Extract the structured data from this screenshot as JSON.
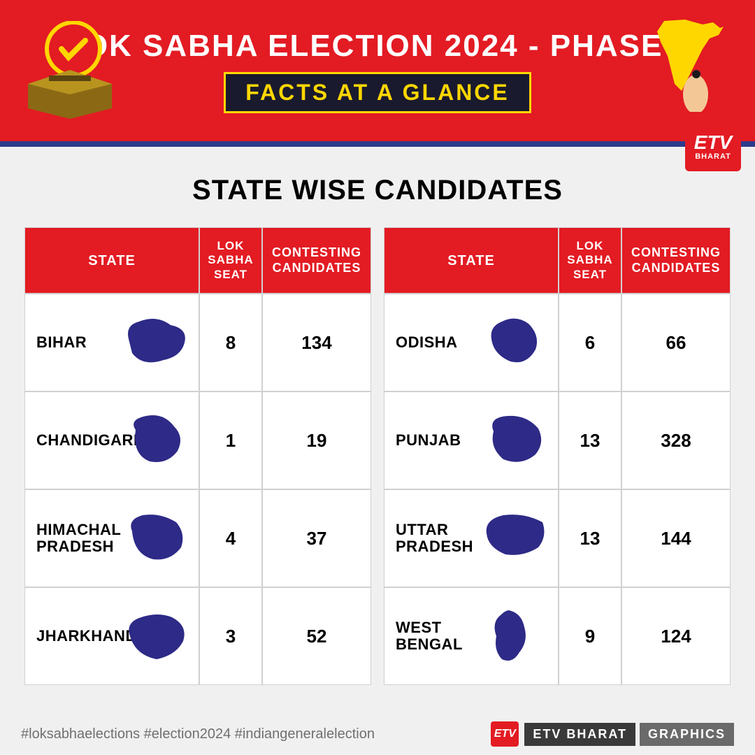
{
  "header": {
    "title": "LOK SABHA ELECTION 2024 - PHASE 7",
    "subtitle": "FACTS AT A GLANCE",
    "bg_color": "#e31b23",
    "title_color": "#ffffff",
    "subtitle_color": "#ffd700",
    "subtitle_bg": "#1a1a2e",
    "divider_color": "#2e3a8c",
    "title_fontsize": 44,
    "subtitle_fontsize": 32
  },
  "logo": {
    "brand_short": "ETV",
    "brand_sub": "BHARAT"
  },
  "content": {
    "title": "STATE WISE CANDIDATES",
    "title_color": "#000000",
    "title_fontsize": 40,
    "bg_color": "#f0f0f0"
  },
  "table": {
    "columns": [
      "STATE",
      "LOK SABHA SEAT",
      "CONTESTING CANDIDATES"
    ],
    "header_bg": "#e31b23",
    "header_color": "#ffffff",
    "cell_bg": "#ffffff",
    "cell_color": "#000000",
    "border_color": "#d0d0d0",
    "map_color": "#2e2a87",
    "left_rows": [
      {
        "state": "BIHAR",
        "seat": "8",
        "candidates": "134"
      },
      {
        "state": "CHANDIGARH",
        "seat": "1",
        "candidates": "19"
      },
      {
        "state": "HIMACHAL PRADESH",
        "seat": "4",
        "candidates": "37"
      },
      {
        "state": "JHARKHAND",
        "seat": "3",
        "candidates": "52"
      }
    ],
    "right_rows": [
      {
        "state": "ODISHA",
        "seat": "6",
        "candidates": "66"
      },
      {
        "state": "PUNJAB",
        "seat": "13",
        "candidates": "328"
      },
      {
        "state": "UTTAR PRADESH",
        "seat": "13",
        "candidates": "144"
      },
      {
        "state": "WEST BENGAL",
        "seat": "9",
        "candidates": "124"
      }
    ]
  },
  "footer": {
    "hashtags": "#loksabhaelections   #election2024   #indiangeneralelection",
    "brand": "ETV BHARAT",
    "label": "GRAPHICS",
    "hashtag_color": "#707070",
    "brand_bg": "#3a3a3a",
    "label_bg": "#6a6a6a"
  }
}
